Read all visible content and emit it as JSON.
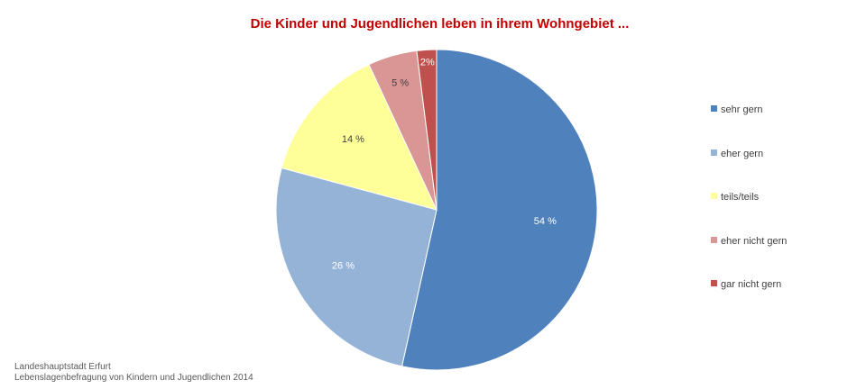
{
  "chart_data": {
    "type": "pie",
    "title": "Die Kinder und Jugendlichen leben in ihrem Wohngebiet ...",
    "categories": [
      "sehr gern",
      "eher gern",
      "teils/teils",
      "eher nicht gern",
      "gar nicht gern"
    ],
    "values": [
      54,
      26,
      14,
      5,
      2
    ],
    "data_labels": [
      "54 %",
      "26 %",
      "14 %",
      "5 %",
      "2%"
    ],
    "colors": [
      "#4f81bd",
      "#95b3d7",
      "#ffff99",
      "#d99694",
      "#c0504d"
    ],
    "label_colors": [
      "#ffffff",
      "#ffffff",
      "#404040",
      "#404040",
      "#ffffff"
    ],
    "start_angle_deg": 0,
    "direction": "clockwise",
    "legend_position": "right"
  },
  "source": {
    "line1": "Landeshauptstadt Erfurt",
    "line2": "Lebenslagenbefragung von Kindern und Jugendlichen 2014"
  }
}
